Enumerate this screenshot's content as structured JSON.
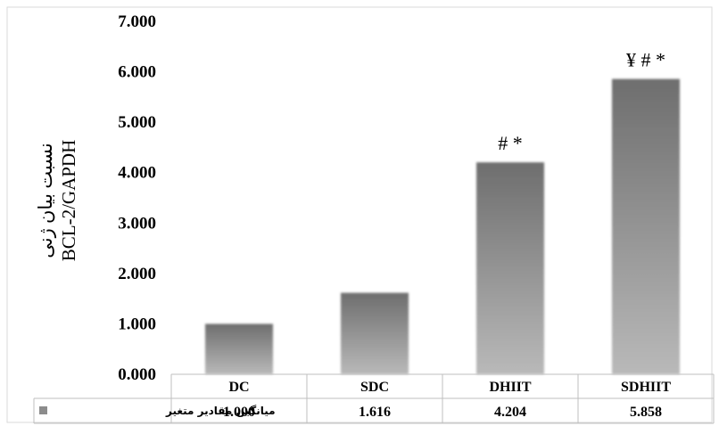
{
  "chart_data": {
    "type": "bar",
    "title": "",
    "ylabel_lines": [
      "نسبت بیان ژنی",
      "BCL-2/GAPDH"
    ],
    "xlabel": "",
    "categories": [
      "DC",
      "SDC",
      "DHIIT",
      "SDHIIT"
    ],
    "series": [
      {
        "name": "میانگین مقادیر متغیر",
        "values": [
          1.0,
          1.616,
          4.204,
          5.858
        ],
        "value_labels": [
          "1.000",
          "1.616",
          "4.204",
          "5.858"
        ],
        "color": "#8c8c8c"
      }
    ],
    "annotations": [
      "",
      "",
      "# *",
      "¥ # *"
    ],
    "ylim": [
      0,
      7
    ],
    "yticks": [
      "0.000",
      "1.000",
      "2.000",
      "3.000",
      "4.000",
      "5.000",
      "6.000",
      "7.000"
    ],
    "grid": false,
    "legend": "data-table-left",
    "data_table": true
  }
}
